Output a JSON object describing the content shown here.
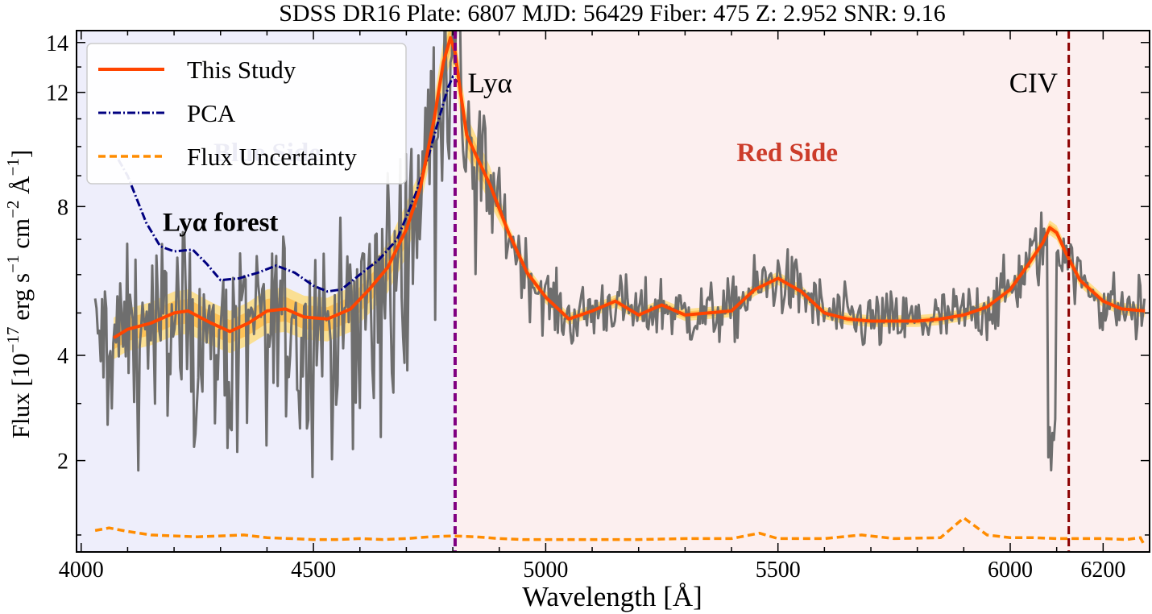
{
  "chart_data": {
    "type": "line",
    "title": "SDSS DR16  Plate: 6807  MJD: 56429  Fiber: 475  Z: 2.952  SNR: 9.16",
    "xlabel": "Wavelength [Å]",
    "ylabel": "Flux [10$^{-17}$ erg s$^{-1}$ cm$^{-2}$ Å$^{-1}$]",
    "ylabel_parts": [
      "Flux [10",
      "−17",
      " erg s",
      "−1",
      " cm",
      "−2",
      " Å",
      "−1",
      "]"
    ],
    "xlim": [
      3990,
      6300
    ],
    "ylim": [
      0.82,
      14.5
    ],
    "y_scale": "sqrt",
    "xticks": [
      4000,
      4500,
      5000,
      5500,
      6000,
      6200
    ],
    "yticks": [
      2,
      4,
      8,
      12,
      14
    ],
    "x_minor_step": 100,
    "legend_position": "top-left",
    "colors": {
      "blue_region": "#eeeefb",
      "red_region": "#fcefef",
      "spectrum": "#6e6e6e",
      "this_study": "#ff4500",
      "band_outer": "#ffd866",
      "band_inner": "#ffb030",
      "pca": "#000080",
      "uncertainty": "#ff8c00",
      "lya_line": "#800080",
      "civ_line": "#8b0000",
      "blue_label": "#0d0d80",
      "red_label": "#cc3c2a"
    },
    "regions": [
      {
        "name": "Blue Side",
        "x": [
          3990,
          4805
        ],
        "label_x": 4400,
        "label_y": 9.5
      },
      {
        "name": "Red Side",
        "x": [
          4805,
          6300
        ],
        "label_x": 5520,
        "label_y": 9.5
      }
    ],
    "lines": [
      {
        "name": "Lyα",
        "x": 4805,
        "label_x": 4880,
        "label_y": 12.0
      },
      {
        "name": "CIV",
        "x": 6126,
        "label_x": 6050,
        "label_y": 12.0
      }
    ],
    "annotations": [
      {
        "text": "Lyα forest",
        "x": 4300,
        "y": 7.25
      }
    ],
    "series": [
      {
        "name": "This Study",
        "style": "solid",
        "x": [
          4070,
          4100,
          4150,
          4200,
          4230,
          4280,
          4320,
          4360,
          4400,
          4440,
          4480,
          4530,
          4580,
          4620,
          4660,
          4700,
          4730,
          4760,
          4780,
          4795,
          4805,
          4815,
          4830,
          4850,
          4880,
          4920,
          4960,
          5000,
          5050,
          5100,
          5150,
          5200,
          5250,
          5300,
          5350,
          5400,
          5450,
          5500,
          5550,
          5600,
          5650,
          5700,
          5750,
          5800,
          5850,
          5900,
          5950,
          6000,
          6040,
          6070,
          6085,
          6100,
          6120,
          6150,
          6200,
          6240,
          6290
        ],
        "y": [
          4.4,
          4.6,
          4.75,
          5.0,
          5.05,
          4.75,
          4.55,
          4.75,
          5.05,
          5.1,
          4.9,
          4.85,
          5.1,
          5.6,
          6.2,
          7.3,
          8.6,
          11.0,
          13.2,
          14.2,
          13.6,
          12.2,
          10.4,
          9.7,
          8.7,
          7.2,
          6.05,
          5.4,
          4.85,
          5.05,
          5.3,
          4.95,
          5.2,
          4.95,
          5.0,
          5.05,
          5.6,
          5.9,
          5.55,
          5.0,
          4.85,
          4.8,
          4.8,
          4.8,
          4.85,
          4.95,
          5.15,
          5.6,
          6.3,
          6.9,
          7.35,
          7.2,
          6.6,
          5.85,
          5.3,
          5.1,
          5.05
        ]
      },
      {
        "name": "PCA",
        "style": "dashdot",
        "x": [
          4080,
          4100,
          4140,
          4170,
          4200,
          4240,
          4270,
          4300,
          4340,
          4380,
          4420,
          4460,
          4500,
          4530,
          4560,
          4600,
          4640,
          4680,
          4720,
          4750,
          4770,
          4790,
          4800,
          4810
        ],
        "y": [
          9.55,
          9.0,
          7.5,
          6.8,
          6.65,
          6.7,
          6.3,
          5.85,
          5.9,
          6.05,
          6.25,
          6.05,
          5.7,
          5.55,
          5.6,
          6.0,
          6.4,
          7.0,
          8.4,
          9.8,
          11.0,
          12.2,
          12.6,
          12.4
        ]
      },
      {
        "name": "Flux Uncertainty",
        "style": "dashed",
        "x": [
          4030,
          4060,
          4100,
          4150,
          4200,
          4250,
          4300,
          4350,
          4400,
          4450,
          4500,
          4550,
          4600,
          4650,
          4700,
          4750,
          4800,
          4850,
          4900,
          4950,
          5000,
          5100,
          5200,
          5300,
          5400,
          5460,
          5500,
          5600,
          5680,
          5750,
          5850,
          5900,
          5950,
          6000,
          6050,
          6100,
          6150,
          6200,
          6250,
          6280,
          6290
        ],
        "y": [
          1.05,
          1.08,
          1.04,
          1.0,
          0.99,
          0.98,
          0.99,
          1.0,
          0.97,
          0.96,
          0.95,
          0.95,
          0.96,
          0.95,
          0.96,
          0.98,
          0.99,
          0.98,
          0.96,
          0.95,
          0.95,
          0.95,
          0.95,
          0.96,
          0.96,
          1.02,
          0.96,
          0.96,
          1.0,
          0.96,
          0.97,
          1.2,
          1.0,
          0.97,
          0.97,
          0.96,
          0.96,
          0.96,
          0.95,
          0.97,
          0.88
        ]
      }
    ]
  }
}
